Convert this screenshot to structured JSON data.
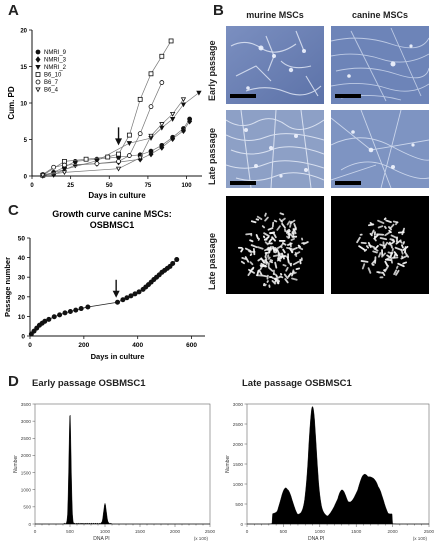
{
  "panels": {
    "a": "A",
    "b": "B",
    "c": "C",
    "d": "D"
  },
  "panel_b": {
    "col_murine": "murine MSCs",
    "col_canine": "canine MSCs",
    "row_early": "Early passage",
    "row_late": "Late passage",
    "row_late_karyo": "Late passage"
  },
  "panel_d": {
    "title_early": "Early passage OSBMSC1",
    "title_late": "Late passage OSBMSC1",
    "ylabel": "Number",
    "xlabel": "DNA  PI",
    "xunit": "(x 100)"
  },
  "chart_data": [
    {
      "id": "A",
      "type": "line",
      "title": "",
      "xlabel": "Days in culture",
      "ylabel": "Cum. PD",
      "xlim": [
        0,
        110
      ],
      "ylim": [
        0,
        20
      ],
      "xticks": [
        0,
        25,
        50,
        75,
        100
      ],
      "yticks": [
        0,
        5,
        10,
        15,
        20
      ],
      "series": [
        {
          "name": "NMRI_9",
          "marker": "circle-filled",
          "x": [
            7,
            14,
            21,
            28,
            42,
            56,
            70,
            77,
            84,
            91,
            98,
            102
          ],
          "y": [
            0.1,
            0.5,
            1.2,
            2.0,
            2.3,
            2.6,
            2.9,
            3.4,
            4.2,
            5.3,
            6.5,
            7.8
          ]
        },
        {
          "name": "NMRI_3",
          "marker": "diamond-filled",
          "x": [
            14,
            28,
            42,
            56,
            70,
            77,
            84,
            91,
            98,
            102
          ],
          "y": [
            0.2,
            1.5,
            1.7,
            1.9,
            2.3,
            3.0,
            3.9,
            5.1,
            6.2,
            7.5
          ]
        },
        {
          "name": "NMRI_2",
          "marker": "triangle-filled",
          "x": [
            7,
            21,
            42,
            63,
            77,
            84,
            91,
            98,
            108
          ],
          "y": [
            0.0,
            0.9,
            2.1,
            4.5,
            5.2,
            6.6,
            7.8,
            9.8,
            11.4
          ]
        },
        {
          "name": "B6_10",
          "marker": "square-open",
          "x": [
            7,
            21,
            35,
            49,
            56,
            63,
            70,
            77,
            84,
            90
          ],
          "y": [
            0.1,
            2.0,
            2.3,
            2.6,
            3.0,
            5.6,
            10.5,
            14.0,
            16.4,
            18.5
          ]
        },
        {
          "name": "B6_7",
          "marker": "circle-open",
          "x": [
            7,
            14,
            21,
            42,
            56,
            63,
            70,
            77,
            84
          ],
          "y": [
            0.2,
            1.2,
            1.5,
            1.7,
            2.0,
            2.8,
            5.8,
            9.5,
            12.8
          ]
        },
        {
          "name": "B6_4",
          "marker": "triangle-open",
          "x": [
            7,
            21,
            56,
            70,
            77,
            84,
            91,
            98
          ],
          "y": [
            0.1,
            0.5,
            1.0,
            2.5,
            5.5,
            7.1,
            8.5,
            10.5
          ]
        }
      ],
      "annotations": [
        {
          "type": "arrow",
          "x": 56,
          "y": 4.2
        }
      ]
    },
    {
      "id": "C",
      "type": "line",
      "title": "Growth curve canine MSCs: OSBMSC1",
      "xlabel": "Days in culture",
      "ylabel": "Passage number",
      "xlim": [
        0,
        650
      ],
      "ylim": [
        0,
        50
      ],
      "xticks": [
        0,
        200,
        400,
        600
      ],
      "yticks": [
        0,
        10,
        20,
        30,
        40,
        50
      ],
      "series": [
        {
          "name": "",
          "marker": "circle-filled",
          "x": [
            5,
            15,
            25,
            35,
            45,
            55,
            70,
            90,
            110,
            130,
            150,
            170,
            190,
            215,
            325,
            345,
            360,
            375,
            390,
            405,
            420,
            430,
            440,
            450,
            460,
            470,
            480,
            490,
            500,
            510,
            520,
            530,
            545
          ],
          "y": [
            1,
            2.5,
            4,
            5.5,
            6.5,
            7.5,
            8.5,
            9.8,
            10.8,
            11.8,
            12.5,
            13.2,
            14,
            14.8,
            17.2,
            18.5,
            19.5,
            20.5,
            21.5,
            22.5,
            23.8,
            25,
            26.2,
            27.5,
            28.8,
            30,
            31.2,
            32.5,
            33.5,
            34.5,
            35.5,
            37,
            39
          ]
        }
      ],
      "annotations": [
        {
          "type": "arrow",
          "x": 320,
          "y": 19.5
        }
      ]
    },
    {
      "id": "D-early",
      "type": "area",
      "title": "Early passage OSBMSC1",
      "xlabel": "DNA PI",
      "ylabel": "Number",
      "xlim": [
        0,
        2500
      ],
      "ylim": [
        0,
        3500
      ],
      "xticks": [
        0,
        500,
        1000,
        1500,
        2000,
        2500
      ],
      "yticks": [
        0,
        500,
        1000,
        1500,
        2000,
        2500,
        3000,
        3500
      ],
      "peaks": [
        {
          "x": 500,
          "y": 3250
        },
        {
          "x": 1000,
          "y": 580
        }
      ]
    },
    {
      "id": "D-late",
      "type": "area",
      "title": "Late passage OSBMSC1",
      "xlabel": "DNA PI",
      "ylabel": "Number",
      "xlim": [
        0,
        2500
      ],
      "ylim": [
        0,
        3000
      ],
      "xticks": [
        0,
        500,
        1000,
        1500,
        2000,
        2500
      ],
      "yticks": [
        0,
        500,
        1000,
        1500,
        2000,
        2500,
        3000
      ],
      "peaks": [
        {
          "x": 540,
          "y": 700
        },
        {
          "x": 900,
          "y": 2700
        },
        {
          "x": 1300,
          "y": 600
        },
        {
          "x": 1620,
          "y": 1000
        },
        {
          "x": 1800,
          "y": 500
        }
      ]
    }
  ]
}
